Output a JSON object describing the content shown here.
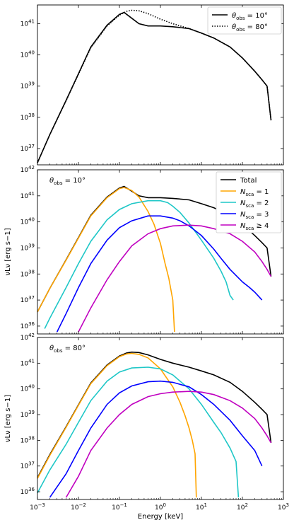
{
  "chart_data": [
    {
      "type": "line",
      "panel": "top",
      "xscale": "log",
      "yscale": "log",
      "xlim": [
        0.001,
        1000
      ],
      "ylim": [
        3e+36,
        4e+41
      ],
      "yticks": [
        "10^37",
        "10^38",
        "10^39",
        "10^40",
        "10^41"
      ],
      "legend": "top-right",
      "series": [
        {
          "name": "θobs = 10°",
          "color": "#000000",
          "style": "solid",
          "x": [
            0.001,
            0.002,
            0.005,
            0.01,
            0.02,
            0.05,
            0.1,
            0.13,
            0.2,
            0.3,
            0.5,
            1,
            2,
            5,
            10,
            20,
            50,
            100,
            200,
            300,
            400,
            500
          ],
          "y": [
            3.5e+36,
            2.8e+37,
            3.5e+38,
            2.5e+39,
            1.8e+40,
            9e+40,
            2e+41,
            2.3e+41,
            1.5e+41,
            1e+41,
            8.5e+40,
            8.5e+40,
            8e+40,
            7e+40,
            5e+40,
            3.5e+40,
            1.8e+40,
            8e+39,
            3e+39,
            1.6e+39,
            1e+39,
            8e+37
          ]
        },
        {
          "name": "θobs = 80°",
          "color": "#000000",
          "style": "dotted",
          "x": [
            0.001,
            0.002,
            0.005,
            0.01,
            0.02,
            0.05,
            0.1,
            0.15,
            0.2,
            0.3,
            0.5,
            1,
            2,
            5,
            10,
            20,
            50,
            100,
            200,
            300,
            400,
            500
          ],
          "y": [
            3.5e+36,
            2.8e+37,
            3.4e+38,
            2.4e+39,
            1.7e+40,
            8.5e+40,
            1.9e+41,
            2.5e+41,
            2.7e+41,
            2.6e+41,
            2.1e+41,
            1.4e+41,
            1e+41,
            7e+40,
            5e+40,
            3.5e+40,
            1.8e+40,
            8e+39,
            3e+39,
            1.6e+39,
            1e+39,
            8e+37
          ]
        }
      ]
    },
    {
      "type": "line",
      "panel": "middle",
      "annotation": "θobs = 10°",
      "xscale": "log",
      "yscale": "log",
      "xlim": [
        0.001,
        1000
      ],
      "ylim": [
        5e+35,
        1e+42
      ],
      "yticks": [
        "10^36",
        "10^37",
        "10^38",
        "10^39",
        "10^40",
        "10^41",
        "10^42"
      ],
      "ylabel": "νLν [erg s−1]",
      "legend": "top-right",
      "series": [
        {
          "name": "Total",
          "color": "#000000",
          "x": [
            0.001,
            0.002,
            0.005,
            0.01,
            0.02,
            0.05,
            0.1,
            0.13,
            0.2,
            0.3,
            0.5,
            1,
            2,
            5,
            10,
            20,
            50,
            100,
            200,
            300,
            400,
            500
          ],
          "y": [
            3.5e+36,
            2.8e+37,
            3.5e+38,
            2.5e+39,
            1.8e+40,
            9e+40,
            2e+41,
            2.3e+41,
            1.5e+41,
            1e+41,
            8.5e+40,
            8.5e+40,
            8e+40,
            7e+40,
            5e+40,
            3.5e+40,
            1.8e+40,
            8e+39,
            3e+39,
            1.6e+39,
            1e+39,
            8e+37
          ]
        },
        {
          "name": "Nsca = 1",
          "color": "#FFA500",
          "x": [
            0.001,
            0.002,
            0.005,
            0.01,
            0.02,
            0.05,
            0.1,
            0.13,
            0.2,
            0.3,
            0.5,
            0.7,
            1,
            1.3,
            1.6,
            2,
            2.2
          ],
          "y": [
            3.5e+36,
            2.8e+37,
            3.4e+38,
            2.4e+39,
            1.7e+40,
            8.5e+40,
            1.9e+41,
            2.1e+41,
            1.6e+41,
            9e+40,
            2.5e+40,
            8e+39,
            1.5e+39,
            2.5e+38,
            7e+37,
            1e+37,
            6e+35
          ]
        },
        {
          "name": "Nsca = 2",
          "color": "#1FC7C7",
          "x": [
            0.0015,
            0.002,
            0.005,
            0.01,
            0.02,
            0.05,
            0.1,
            0.2,
            0.5,
            1,
            1.5,
            2,
            3,
            5,
            10,
            20,
            30,
            40,
            50,
            60
          ],
          "y": [
            8e+35,
            2e+36,
            3e+37,
            2.5e+38,
            1.8e+39,
            1.2e+40,
            3e+40,
            5e+40,
            6.5e+40,
            6.5e+40,
            5.5e+40,
            4e+40,
            2.3e+40,
            9e+39,
            2e+39,
            4e+38,
            1.3e+38,
            5e+37,
            1.5e+37,
            1e+37
          ]
        },
        {
          "name": "Nsca = 3",
          "color": "#0000FF",
          "x": [
            0.003,
            0.005,
            0.01,
            0.02,
            0.05,
            0.1,
            0.2,
            0.5,
            1,
            2,
            3,
            5,
            10,
            20,
            30,
            50,
            100,
            150,
            200,
            300
          ],
          "y": [
            6e+35,
            3e+36,
            3e+37,
            2.5e+38,
            2e+39,
            6e+39,
            1.1e+40,
            1.7e+40,
            1.7e+40,
            1.4e+40,
            1.1e+40,
            7e+39,
            3e+39,
            9e+38,
            4e+38,
            1.5e+38,
            5e+37,
            3e+37,
            2e+37,
            1e+37
          ]
        },
        {
          "name": "Nsca ≥ 4",
          "color": "#C000C0",
          "x": [
            0.01,
            0.02,
            0.05,
            0.1,
            0.2,
            0.5,
            1,
            2,
            5,
            10,
            20,
            50,
            100,
            200,
            300,
            400,
            500
          ],
          "y": [
            6e+35,
            5e+36,
            6e+37,
            3e+38,
            1.2e+39,
            3.5e+39,
            5.5e+39,
            7e+39,
            7.5e+39,
            7e+39,
            5.5e+39,
            3.5e+39,
            1.8e+39,
            7e+38,
            3e+38,
            1.5e+38,
            8e+37
          ]
        }
      ]
    },
    {
      "type": "line",
      "panel": "bottom",
      "annotation": "θobs = 80°",
      "xscale": "log",
      "yscale": "log",
      "xlim": [
        0.001,
        1000
      ],
      "ylim": [
        5e+35,
        1e+42
      ],
      "yticks": [
        "10^36",
        "10^37",
        "10^38",
        "10^39",
        "10^40",
        "10^41",
        "10^42"
      ],
      "xticks": [
        "10^-3",
        "10^-2",
        "10^-1",
        "10^0",
        "10^1",
        "10^2",
        "10^3"
      ],
      "xlabel": "Energy [keV]",
      "ylabel": "νLν [erg s−1]",
      "series": [
        {
          "name": "Total",
          "color": "#000000",
          "x": [
            0.001,
            0.002,
            0.005,
            0.01,
            0.02,
            0.05,
            0.1,
            0.15,
            0.2,
            0.3,
            0.5,
            1,
            2,
            5,
            10,
            20,
            50,
            100,
            200,
            300,
            400,
            500
          ],
          "y": [
            3.5e+36,
            2.8e+37,
            3.4e+38,
            2.4e+39,
            1.7e+40,
            8.5e+40,
            1.9e+41,
            2.5e+41,
            2.7e+41,
            2.6e+41,
            2.1e+41,
            1.4e+41,
            1e+41,
            7e+40,
            5e+40,
            3.5e+40,
            1.8e+40,
            8e+39,
            3e+39,
            1.6e+39,
            1e+39,
            8e+37
          ]
        },
        {
          "name": "Nsca = 1",
          "color": "#FFA500",
          "x": [
            0.001,
            0.002,
            0.005,
            0.01,
            0.02,
            0.05,
            0.1,
            0.15,
            0.2,
            0.3,
            0.5,
            1,
            2,
            3,
            4,
            5,
            6,
            7,
            7.5
          ],
          "y": [
            3.3e+36,
            2.6e+37,
            3.2e+38,
            2.3e+39,
            1.6e+40,
            8e+40,
            1.8e+41,
            2.3e+41,
            2.4e+41,
            2.2e+41,
            1.6e+41,
            6e+40,
            1.2e+40,
            3e+39,
            9e+38,
            3e+38,
            1e+38,
            3e+37,
            6e+35
          ]
        },
        {
          "name": "Nsca = 2",
          "color": "#1FC7C7",
          "x": [
            0.001,
            0.002,
            0.005,
            0.01,
            0.02,
            0.05,
            0.1,
            0.2,
            0.5,
            1,
            2,
            5,
            10,
            20,
            30,
            50,
            70,
            80
          ],
          "y": [
            9e+35,
            7e+36,
            7e+37,
            5e+38,
            3.5e+39,
            2e+40,
            4.5e+40,
            6.5e+40,
            7e+40,
            6e+40,
            3.5e+40,
            1e+40,
            2.5e+39,
            5e+38,
            2e+38,
            5e+37,
            1.5e+37,
            6e+35
          ]
        },
        {
          "name": "Nsca = 3",
          "color": "#0000FF",
          "x": [
            0.002,
            0.005,
            0.01,
            0.02,
            0.05,
            0.1,
            0.2,
            0.5,
            1,
            2,
            5,
            10,
            20,
            50,
            100,
            200,
            300
          ],
          "y": [
            6e+35,
            5e+36,
            4e+37,
            3e+38,
            2.5e+39,
            7e+39,
            1.3e+40,
            1.9e+40,
            2e+40,
            1.8e+40,
            1.2e+40,
            6e+39,
            2.5e+39,
            6e+38,
            1.5e+38,
            4e+37,
            1e+37
          ]
        },
        {
          "name": "Nsca ≥ 4",
          "color": "#C000C0",
          "x": [
            0.005,
            0.01,
            0.02,
            0.05,
            0.1,
            0.2,
            0.5,
            1,
            2,
            5,
            10,
            20,
            50,
            100,
            200,
            300,
            400,
            500
          ],
          "y": [
            6e+35,
            4e+36,
            4e+37,
            3e+38,
            1e+39,
            2.5e+39,
            5e+39,
            6.5e+39,
            7.5e+39,
            8e+39,
            7.5e+39,
            6e+39,
            3.5e+39,
            1.8e+39,
            7e+38,
            3e+38,
            1.5e+38,
            8e+37
          ]
        }
      ]
    }
  ]
}
